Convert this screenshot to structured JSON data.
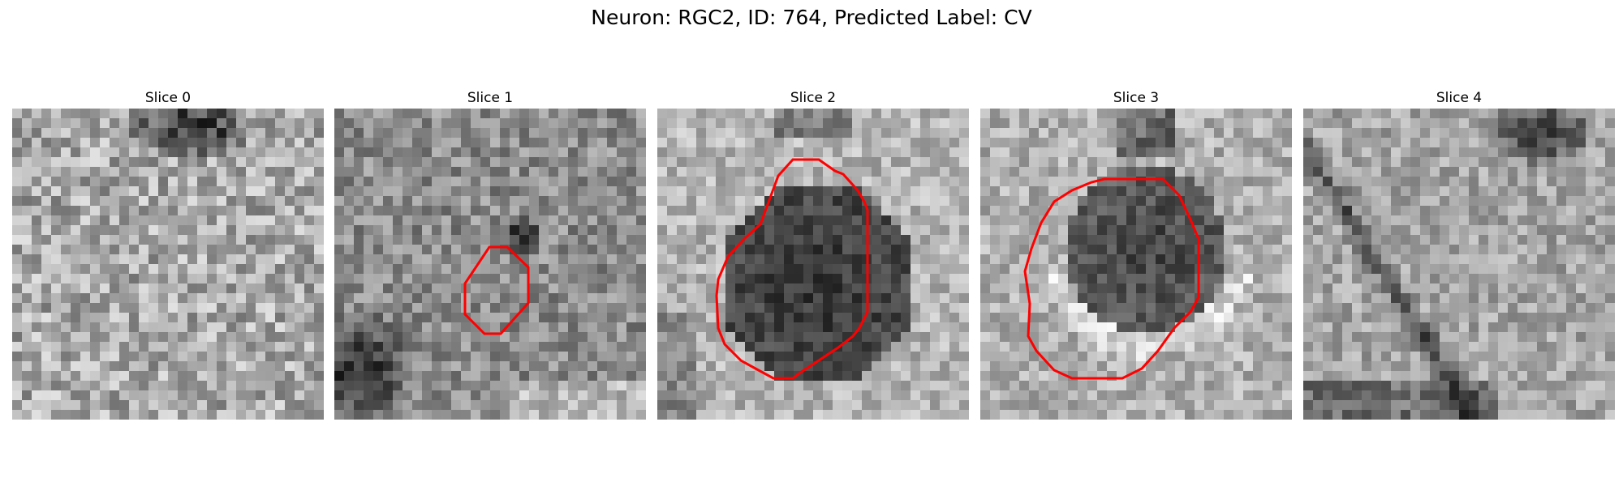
{
  "figure": {
    "title": "Neuron: RGC2, ID: 764, Predicted Label: CV"
  },
  "panels": [
    {
      "title": "Slice 0",
      "image": "grayscale-em-patch",
      "has_contour": false
    },
    {
      "title": "Slice 1",
      "image": "grayscale-em-patch",
      "has_contour": true
    },
    {
      "title": "Slice 2",
      "image": "grayscale-em-patch",
      "has_contour": true
    },
    {
      "title": "Slice 3",
      "image": "grayscale-em-patch",
      "has_contour": true
    },
    {
      "title": "Slice 4",
      "image": "grayscale-em-patch",
      "has_contour": false
    }
  ],
  "colors": {
    "contour": "#ff0000",
    "background": "#ffffff"
  }
}
